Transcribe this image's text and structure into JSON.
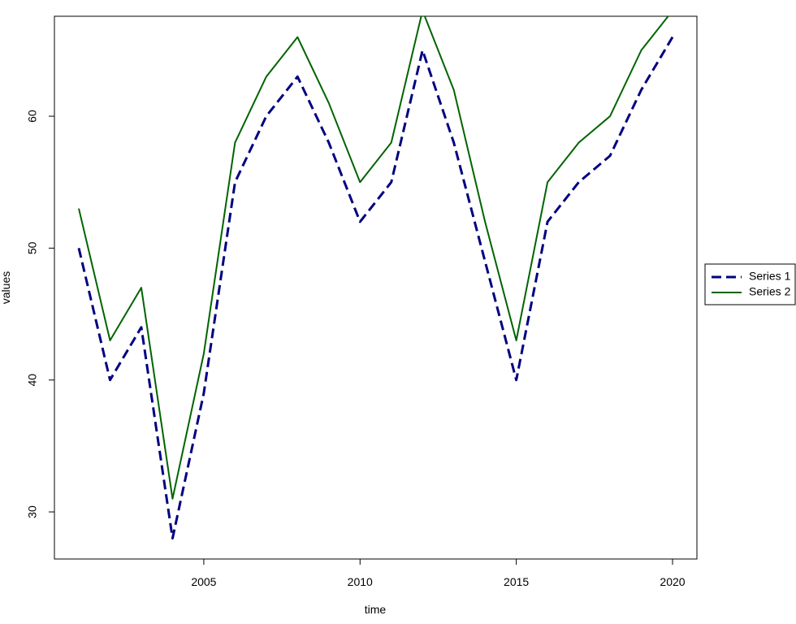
{
  "chart_data": {
    "type": "line",
    "xlabel": "time",
    "ylabel": "values",
    "x": [
      2001,
      2002,
      2003,
      2004,
      2005,
      2006,
      2007,
      2008,
      2009,
      2010,
      2011,
      2012,
      2013,
      2014,
      2015,
      2016,
      2017,
      2018,
      2019,
      2020
    ],
    "series": [
      {
        "name": "Series 1",
        "color": "#000080",
        "line_style": "dashed",
        "values": [
          50,
          40,
          44,
          28,
          39,
          55,
          60,
          63,
          58,
          52,
          55,
          65,
          58,
          49,
          40,
          52,
          55,
          57,
          62,
          66
        ]
      },
      {
        "name": "Series 2",
        "color": "#006400",
        "line_style": "solid",
        "values": [
          53,
          43,
          47,
          31,
          42,
          58,
          63,
          66,
          61,
          55,
          58,
          68,
          62,
          52,
          43,
          55,
          58,
          60,
          65,
          68
        ]
      }
    ],
    "xlim": [
      2000.22,
      2020.78
    ],
    "xticks": [
      2005,
      2010,
      2015,
      2020
    ],
    "ylim": [
      26.43,
      67.58
    ],
    "yticks": [
      30,
      40,
      50,
      60
    ],
    "grid": false,
    "legend": "right"
  }
}
